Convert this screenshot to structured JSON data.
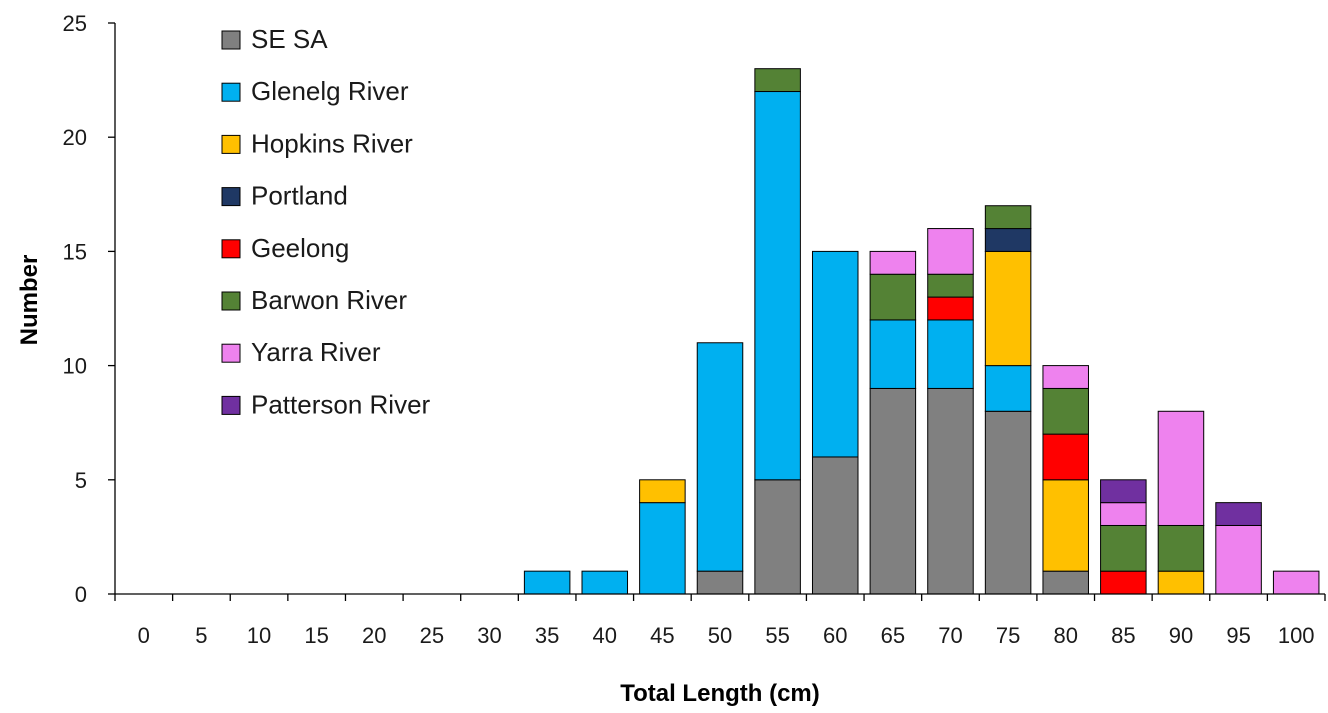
{
  "chart_data": {
    "type": "bar",
    "stacked": true,
    "title": "",
    "xlabel": "Total Length (cm)",
    "ylabel": "Number",
    "ylim": [
      0,
      25
    ],
    "yticks": [
      0,
      5,
      10,
      15,
      20,
      25
    ],
    "grid": false,
    "legend_position": "top-left",
    "categories": [
      "0",
      "5",
      "10",
      "15",
      "20",
      "25",
      "30",
      "35",
      "40",
      "45",
      "50",
      "55",
      "60",
      "65",
      "70",
      "75",
      "80",
      "85",
      "90",
      "95",
      "100"
    ],
    "series": [
      {
        "name": "SE SA",
        "color": "#808080",
        "values": [
          0,
          0,
          0,
          0,
          0,
          0,
          0,
          0,
          0,
          0,
          1,
          5,
          6,
          9,
          9,
          8,
          1,
          0,
          0,
          0,
          0
        ]
      },
      {
        "name": "Glenelg River",
        "color": "#00B0F0",
        "values": [
          0,
          0,
          0,
          0,
          0,
          0,
          0,
          1,
          1,
          4,
          10,
          17,
          9,
          3,
          3,
          2,
          0,
          0,
          0,
          0,
          0
        ]
      },
      {
        "name": "Hopkins River",
        "color": "#FFC000",
        "values": [
          0,
          0,
          0,
          0,
          0,
          0,
          0,
          0,
          0,
          1,
          0,
          0,
          0,
          0,
          0,
          5,
          4,
          0,
          1,
          0,
          0
        ]
      },
      {
        "name": "Portland",
        "color": "#1F3864",
        "values": [
          0,
          0,
          0,
          0,
          0,
          0,
          0,
          0,
          0,
          0,
          0,
          0,
          0,
          0,
          0,
          1,
          0,
          0,
          0,
          0,
          0
        ]
      },
      {
        "name": "Geelong",
        "color": "#FF0000",
        "values": [
          0,
          0,
          0,
          0,
          0,
          0,
          0,
          0,
          0,
          0,
          0,
          0,
          0,
          0,
          1,
          0,
          2,
          1,
          0,
          0,
          0
        ]
      },
      {
        "name": "Barwon River",
        "color": "#548235",
        "values": [
          0,
          0,
          0,
          0,
          0,
          0,
          0,
          0,
          0,
          0,
          0,
          1,
          0,
          2,
          1,
          1,
          2,
          2,
          2,
          0,
          0
        ]
      },
      {
        "name": "Yarra River",
        "color": "#EE82EE",
        "values": [
          0,
          0,
          0,
          0,
          0,
          0,
          0,
          0,
          0,
          0,
          0,
          0,
          0,
          1,
          2,
          0,
          1,
          1,
          5,
          3,
          1
        ]
      },
      {
        "name": "Patterson River",
        "color": "#7030A0",
        "values": [
          0,
          0,
          0,
          0,
          0,
          0,
          0,
          0,
          0,
          0,
          0,
          0,
          0,
          0,
          0,
          0,
          0,
          1,
          0,
          1,
          0
        ]
      }
    ]
  }
}
